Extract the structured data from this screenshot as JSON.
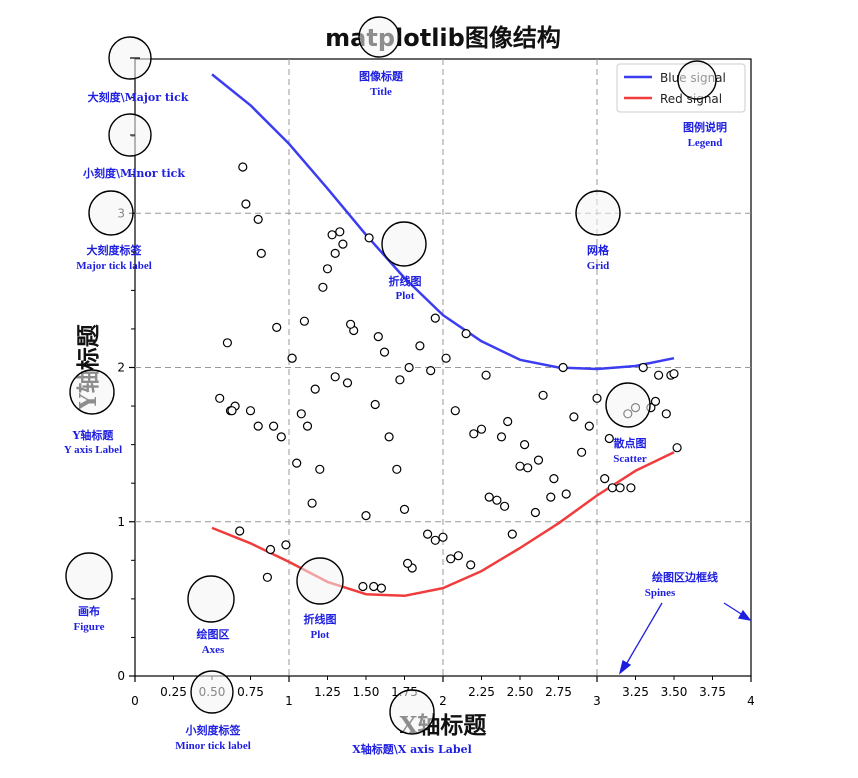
{
  "chart_data": {
    "type": "scatter",
    "title": "matplotlib图像结构",
    "xlabel": "X轴标题",
    "ylabel": "Y轴标题",
    "xlim": [
      0,
      4
    ],
    "ylim": [
      0,
      4
    ],
    "grid": true,
    "legend_position": "top-right",
    "x_major_ticks": [
      "0",
      "1",
      "2",
      "3",
      "4"
    ],
    "x_minor_ticks": [
      "0.25",
      "0.50",
      "0.75",
      "1.25",
      "1.50",
      "1.75",
      "2.25",
      "2.50",
      "2.75",
      "3.25",
      "3.50",
      "3.75"
    ],
    "y_major_ticks": [
      "0",
      "1",
      "2",
      "3"
    ],
    "series": [
      {
        "name": "Blue signal",
        "kind": "line",
        "color": "#3c3cf0",
        "x": [
          0.5,
          0.75,
          1.0,
          1.25,
          1.5,
          1.75,
          2.0,
          2.25,
          2.5,
          2.75,
          3.0,
          3.25,
          3.5
        ],
        "y": [
          3.9,
          3.7,
          3.45,
          3.16,
          2.86,
          2.58,
          2.34,
          2.17,
          2.05,
          2.0,
          1.99,
          2.01,
          2.06
        ]
      },
      {
        "name": "Red signal",
        "kind": "line",
        "color": "#f03c3c",
        "x": [
          0.5,
          0.75,
          1.0,
          1.25,
          1.5,
          1.75,
          2.0,
          2.25,
          2.5,
          2.75,
          3.0,
          3.25,
          3.5
        ],
        "y": [
          0.96,
          0.86,
          0.74,
          0.61,
          0.53,
          0.52,
          0.57,
          0.68,
          0.83,
          0.99,
          1.17,
          1.33,
          1.45
        ]
      },
      {
        "name": "",
        "kind": "scatter",
        "color": "#000000",
        "x": [
          0.7,
          0.72,
          0.8,
          0.82,
          0.92,
          1.02,
          1.08,
          1.12,
          1.17,
          1.22,
          1.28,
          1.33,
          1.38,
          1.42,
          1.52,
          1.56,
          1.62,
          1.65,
          1.72,
          1.78,
          1.85,
          1.95,
          2.02,
          2.15,
          2.28,
          2.38,
          0.6,
          0.65,
          0.75,
          0.8,
          0.9,
          0.95,
          1.05,
          1.1,
          1.2,
          1.25,
          1.3,
          1.4,
          1.5,
          1.6,
          1.7,
          1.8,
          1.9,
          2.0,
          2.1,
          2.2,
          2.3,
          2.4,
          2.5,
          2.6,
          2.7,
          2.8,
          2.9,
          3.0,
          3.1,
          3.2,
          3.3,
          3.4,
          3.48,
          3.52,
          0.55,
          0.62,
          0.68,
          0.88,
          0.98,
          1.15,
          1.35,
          1.55,
          1.75,
          1.95,
          2.05,
          2.25,
          2.45,
          2.55,
          2.65,
          2.85,
          2.95,
          3.05,
          3.15,
          3.25,
          3.35,
          3.45,
          3.5,
          0.63,
          0.86,
          1.02,
          1.48,
          1.58,
          1.77,
          1.92,
          2.18,
          2.42,
          2.72,
          3.08,
          3.22,
          3.38,
          2.08,
          2.53,
          2.62,
          1.3,
          2.35,
          2.78
        ],
        "y": [
          3.3,
          3.06,
          2.96,
          2.74,
          2.26,
          2.06,
          1.7,
          1.62,
          1.86,
          2.52,
          2.86,
          2.88,
          1.9,
          2.24,
          2.84,
          1.76,
          2.1,
          1.55,
          1.92,
          2.0,
          2.14,
          2.32,
          2.06,
          2.22,
          1.95,
          1.55,
          2.16,
          1.75,
          1.72,
          1.62,
          1.62,
          1.55,
          1.38,
          2.3,
          1.34,
          2.64,
          2.74,
          2.28,
          1.04,
          0.57,
          1.34,
          0.7,
          0.92,
          0.9,
          0.78,
          1.57,
          1.16,
          1.1,
          1.36,
          1.06,
          1.16,
          1.18,
          1.45,
          1.8,
          1.22,
          1.7,
          2.0,
          1.95,
          1.95,
          1.48,
          1.8,
          1.72,
          0.94,
          0.82,
          0.85,
          1.12,
          2.8,
          0.58,
          1.08,
          0.88,
          0.76,
          1.6,
          0.92,
          1.35,
          1.82,
          1.68,
          1.62,
          1.28,
          1.22,
          1.74,
          1.74,
          1.7,
          1.96,
          1.72,
          0.64,
          2.06,
          0.58,
          2.2,
          0.73,
          1.98,
          0.72,
          1.65,
          1.28,
          1.54,
          1.22,
          1.78,
          1.72,
          1.5,
          1.4,
          1.94,
          1.14,
          2.0
        ]
      }
    ]
  },
  "legend": {
    "items": [
      {
        "label": "Blue signal",
        "color": "#3c3cf0"
      },
      {
        "label": "Red signal",
        "color": "#f03c3c"
      }
    ]
  },
  "annotations": [
    {
      "cn": "图像标题",
      "en": "Title"
    },
    {
      "cn": "大刻度\\Major tick",
      "en": ""
    },
    {
      "cn": "小刻度\\Minor tick",
      "en": ""
    },
    {
      "cn": "大刻度标签",
      "en": "Major tick label"
    },
    {
      "cn": "图例说明",
      "en": "Legend"
    },
    {
      "cn": "折线图",
      "en": "Plot"
    },
    {
      "cn": "网格",
      "en": "Grid"
    },
    {
      "cn": "Y轴标题",
      "en": "Y axis Label"
    },
    {
      "cn": "散点图",
      "en": "Scatter"
    },
    {
      "cn": "绘图区边框线",
      "en": "Spines"
    },
    {
      "cn": "画布",
      "en": "Figure"
    },
    {
      "cn": "绘图区",
      "en": "Axes"
    },
    {
      "cn": "折线图",
      "en": "Plot"
    },
    {
      "cn": "小刻度标签",
      "en": "Minor tick label"
    },
    {
      "cn": "X轴标题\\X axis Label",
      "en": ""
    }
  ],
  "colors": {
    "annotation": "#1f1fe0",
    "grid": "#999999",
    "marker_circle_fill": "#f4f4f4"
  }
}
